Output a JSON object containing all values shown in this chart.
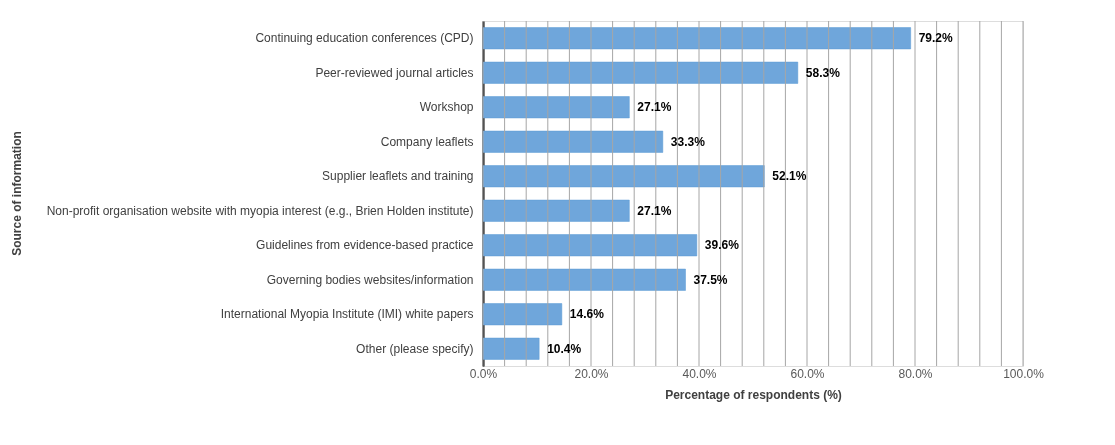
{
  "chart_data": {
    "type": "bar",
    "orientation": "horizontal",
    "categories": [
      "Continuing education conferences (CPD)",
      "Peer-reviewed journal articles",
      "Workshop",
      "Company leaflets",
      "Supplier leaflets and training",
      "Non-profit organisation website with myopia interest (e.g., Brien Holden institute)",
      "Guidelines from evidence-based practice",
      "Governing bodies websites/information",
      "International Myopia Institute (IMI) white papers",
      "Other (please specify)"
    ],
    "values": [
      79.2,
      58.3,
      27.1,
      33.3,
      52.1,
      27.1,
      39.6,
      37.5,
      14.6,
      10.4
    ],
    "value_labels": [
      "79.2%",
      "58.3%",
      "27.1%",
      "33.3%",
      "52.1%",
      "27.1%",
      "39.6%",
      "37.5%",
      "14.6%",
      "10.4%"
    ],
    "color": "#6fa6db",
    "xlabel": "Percentage of respondents (%)",
    "ylabel": "Source of information",
    "xlim": [
      0,
      100
    ],
    "xticks": [
      {
        "value": 0,
        "label": "0.0%"
      },
      {
        "value": 4,
        "label": null
      },
      {
        "value": 8,
        "label": null
      },
      {
        "value": 12,
        "label": null
      },
      {
        "value": 16,
        "label": null
      },
      {
        "value": 20,
        "label": "20.0%"
      },
      {
        "value": 24,
        "label": null
      },
      {
        "value": 28,
        "label": null
      },
      {
        "value": 32,
        "label": null
      },
      {
        "value": 36,
        "label": null
      },
      {
        "value": 40,
        "label": "40.0%"
      },
      {
        "value": 44,
        "label": null
      },
      {
        "value": 48,
        "label": null
      },
      {
        "value": 52,
        "label": null
      },
      {
        "value": 56,
        "label": null
      },
      {
        "value": 60,
        "label": "60.0%"
      },
      {
        "value": 64,
        "label": null
      },
      {
        "value": 68,
        "label": null
      },
      {
        "value": 72,
        "label": null
      },
      {
        "value": 76,
        "label": null
      },
      {
        "value": 80,
        "label": "80.0%"
      },
      {
        "value": 84,
        "label": null
      },
      {
        "value": 88,
        "label": null
      },
      {
        "value": 92,
        "label": null
      },
      {
        "value": 96,
        "label": null
      },
      {
        "value": 100,
        "label": "100.0%"
      }
    ],
    "grid": "x"
  }
}
